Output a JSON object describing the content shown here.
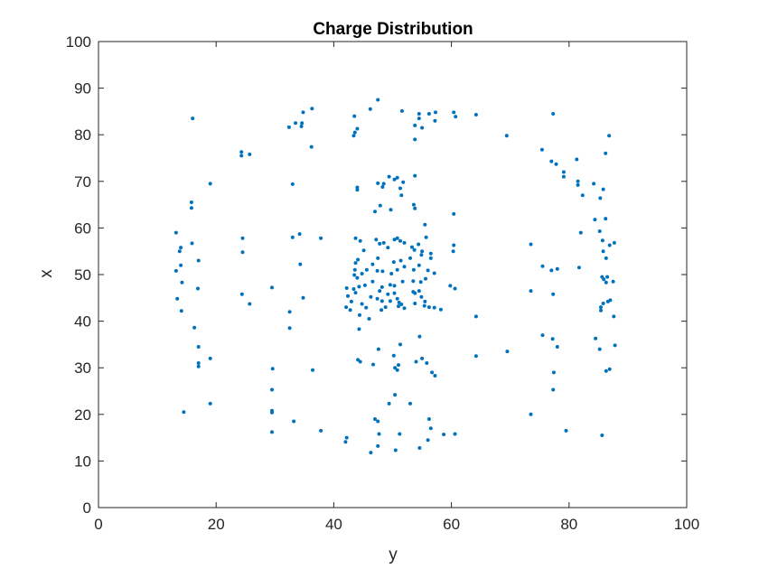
{
  "chart_data": {
    "type": "scatter",
    "title": "Charge Distribution",
    "xlabel": "y",
    "ylabel": "x",
    "xlim": [
      0,
      100
    ],
    "ylim": [
      0,
      100
    ],
    "xticks": [
      "0",
      "20",
      "40",
      "60",
      "80",
      "100"
    ],
    "yticks": [
      "0",
      "10",
      "20",
      "30",
      "40",
      "50",
      "60",
      "70",
      "80",
      "90",
      "100"
    ],
    "grid": false,
    "marker_color": "#0072BD",
    "points": [
      [
        16.0,
        83.5
      ],
      [
        19.0,
        69.5
      ],
      [
        13.2,
        59.0
      ],
      [
        13.8,
        55.0
      ],
      [
        14.0,
        55.8
      ],
      [
        15.8,
        65.5
      ],
      [
        15.8,
        64.3
      ],
      [
        15.9,
        56.7
      ],
      [
        17.0,
        53.0
      ],
      [
        13.2,
        50.8
      ],
      [
        14.0,
        52.0
      ],
      [
        14.2,
        48.3
      ],
      [
        16.9,
        47.0
      ],
      [
        13.4,
        44.8
      ],
      [
        14.1,
        42.2
      ],
      [
        16.3,
        38.6
      ],
      [
        17.0,
        34.5
      ],
      [
        17.0,
        31.0
      ],
      [
        17.0,
        30.3
      ],
      [
        19.0,
        32.0
      ],
      [
        14.5,
        20.5
      ],
      [
        19.0,
        22.3
      ],
      [
        24.3,
        76.3
      ],
      [
        24.3,
        75.5
      ],
      [
        25.7,
        75.8
      ],
      [
        24.5,
        57.8
      ],
      [
        24.5,
        54.8
      ],
      [
        24.4,
        45.8
      ],
      [
        25.7,
        43.7
      ],
      [
        29.5,
        47.2
      ],
      [
        29.6,
        29.8
      ],
      [
        29.5,
        25.3
      ],
      [
        29.5,
        20.8
      ],
      [
        29.5,
        20.4
      ],
      [
        29.5,
        16.2
      ],
      [
        33.2,
        18.5
      ],
      [
        37.8,
        16.5
      ],
      [
        32.4,
        81.6
      ],
      [
        33.5,
        82.5
      ],
      [
        34.8,
        84.8
      ],
      [
        34.6,
        82.5
      ],
      [
        34.5,
        81.8
      ],
      [
        36.3,
        85.6
      ],
      [
        36.2,
        77.4
      ],
      [
        33.0,
        69.4
      ],
      [
        33.0,
        58.0
      ],
      [
        34.2,
        58.7
      ],
      [
        37.8,
        57.8
      ],
      [
        34.3,
        52.2
      ],
      [
        34.8,
        45.0
      ],
      [
        32.5,
        42.0
      ],
      [
        32.5,
        38.5
      ],
      [
        36.4,
        29.5
      ],
      [
        42.2,
        15.0
      ],
      [
        42.0,
        14.1
      ],
      [
        43.5,
        84.0
      ],
      [
        44.0,
        81.3
      ],
      [
        43.6,
        80.5
      ],
      [
        43.4,
        79.8
      ],
      [
        46.2,
        85.5
      ],
      [
        47.5,
        87.5
      ],
      [
        51.6,
        85.1
      ],
      [
        54.5,
        84.5
      ],
      [
        56.2,
        84.5
      ],
      [
        57.3,
        84.8
      ],
      [
        57.2,
        83.0
      ],
      [
        54.5,
        83.5
      ],
      [
        53.8,
        82.0
      ],
      [
        55.0,
        81.5
      ],
      [
        53.8,
        79.0
      ],
      [
        60.4,
        84.8
      ],
      [
        60.7,
        83.9
      ],
      [
        64.2,
        84.3
      ],
      [
        69.4,
        79.8
      ],
      [
        44.0,
        68.7
      ],
      [
        44.0,
        68.2
      ],
      [
        47.5,
        69.6
      ],
      [
        48.5,
        69.5
      ],
      [
        48.3,
        68.8
      ],
      [
        49.4,
        71.0
      ],
      [
        50.3,
        70.4
      ],
      [
        50.8,
        70.8
      ],
      [
        51.8,
        69.8
      ],
      [
        53.8,
        71.2
      ],
      [
        51.3,
        68.5
      ],
      [
        51.5,
        67.0
      ],
      [
        53.6,
        65.0
      ],
      [
        53.8,
        64.2
      ],
      [
        47.0,
        63.5
      ],
      [
        47.9,
        64.8
      ],
      [
        49.7,
        63.9
      ],
      [
        43.7,
        57.8
      ],
      [
        44.5,
        57.2
      ],
      [
        45.1,
        55.2
      ],
      [
        47.2,
        57.5
      ],
      [
        47.8,
        56.6
      ],
      [
        48.5,
        56.8
      ],
      [
        49.2,
        55.8
      ],
      [
        50.3,
        57.5
      ],
      [
        50.8,
        57.8
      ],
      [
        51.3,
        57.2
      ],
      [
        52.0,
        56.8
      ],
      [
        53.3,
        55.9
      ],
      [
        53.7,
        55.3
      ],
      [
        54.4,
        56.5
      ],
      [
        55.5,
        60.7
      ],
      [
        55.7,
        58.0
      ],
      [
        56.5,
        54.5
      ],
      [
        55.0,
        55.0
      ],
      [
        54.9,
        54.2
      ],
      [
        56.5,
        53.5
      ],
      [
        53.0,
        53.5
      ],
      [
        51.4,
        53.0
      ],
      [
        50.2,
        52.7
      ],
      [
        47.5,
        53.5
      ],
      [
        46.6,
        52.2
      ],
      [
        44.1,
        53.2
      ],
      [
        43.7,
        52.5
      ],
      [
        43.6,
        51.0
      ],
      [
        43.5,
        49.9
      ],
      [
        44.0,
        49.3
      ],
      [
        44.8,
        50.2
      ],
      [
        45.6,
        51.0
      ],
      [
        47.4,
        50.8
      ],
      [
        48.3,
        50.7
      ],
      [
        49.8,
        50.2
      ],
      [
        50.8,
        51.0
      ],
      [
        52.0,
        51.7
      ],
      [
        53.6,
        51.0
      ],
      [
        54.5,
        52.0
      ],
      [
        56.0,
        50.9
      ],
      [
        57.1,
        50.3
      ],
      [
        55.6,
        49.1
      ],
      [
        54.8,
        48.4
      ],
      [
        53.5,
        48.6
      ],
      [
        51.7,
        48.5
      ],
      [
        49.6,
        47.8
      ],
      [
        48.2,
        47.3
      ],
      [
        46.6,
        48.5
      ],
      [
        45.3,
        47.7
      ],
      [
        44.3,
        47.4
      ],
      [
        43.4,
        46.9
      ],
      [
        43.7,
        46.1
      ],
      [
        42.2,
        47.1
      ],
      [
        42.4,
        45.4
      ],
      [
        43.0,
        44.2
      ],
      [
        42.1,
        43.0
      ],
      [
        42.8,
        42.4
      ],
      [
        44.8,
        43.7
      ],
      [
        46.3,
        45.2
      ],
      [
        47.4,
        44.8
      ],
      [
        47.8,
        46.5
      ],
      [
        48.2,
        44.3
      ],
      [
        49.2,
        45.8
      ],
      [
        49.6,
        44.3
      ],
      [
        50.3,
        46.0
      ],
      [
        50.8,
        44.8
      ],
      [
        51.1,
        44.0
      ],
      [
        51.0,
        43.2
      ],
      [
        51.5,
        43.6
      ],
      [
        52.0,
        42.8
      ],
      [
        53.5,
        46.3
      ],
      [
        53.8,
        46.0
      ],
      [
        54.5,
        46.5
      ],
      [
        54.9,
        45.2
      ],
      [
        55.5,
        44.2
      ],
      [
        56.2,
        43.0
      ],
      [
        55.4,
        43.3
      ],
      [
        53.8,
        43.8
      ],
      [
        57.1,
        42.9
      ],
      [
        58.2,
        42.5
      ],
      [
        50.3,
        47.6
      ],
      [
        45.5,
        42.9
      ],
      [
        44.4,
        41.3
      ],
      [
        46.0,
        40.5
      ],
      [
        48.1,
        42.4
      ],
      [
        48.8,
        43.0
      ],
      [
        59.8,
        47.6
      ],
      [
        60.6,
        47.0
      ],
      [
        60.3,
        55.0
      ],
      [
        60.4,
        56.3
      ],
      [
        60.4,
        63.0
      ],
      [
        64.2,
        41.0
      ],
      [
        64.2,
        32.5
      ],
      [
        69.5,
        33.5
      ],
      [
        44.3,
        38.3
      ],
      [
        47.6,
        34.0
      ],
      [
        50.2,
        32.6
      ],
      [
        51.3,
        35.0
      ],
      [
        50.4,
        30.0
      ],
      [
        50.8,
        29.5
      ],
      [
        51.0,
        30.6
      ],
      [
        46.7,
        30.7
      ],
      [
        44.1,
        31.7
      ],
      [
        44.5,
        31.3
      ],
      [
        55.0,
        32.0
      ],
      [
        55.8,
        31.0
      ],
      [
        54.0,
        31.3
      ],
      [
        54.6,
        36.7
      ],
      [
        56.7,
        29.0
      ],
      [
        57.2,
        28.3
      ],
      [
        50.4,
        24.2
      ],
      [
        49.4,
        22.3
      ],
      [
        53.0,
        22.3
      ],
      [
        47.0,
        19.0
      ],
      [
        47.5,
        18.5
      ],
      [
        47.7,
        15.8
      ],
      [
        46.3,
        11.8
      ],
      [
        47.5,
        13.2
      ],
      [
        50.5,
        12.3
      ],
      [
        51.2,
        15.8
      ],
      [
        54.6,
        12.8
      ],
      [
        56.5,
        17.0
      ],
      [
        56.0,
        14.5
      ],
      [
        56.2,
        19.0
      ],
      [
        58.7,
        15.7
      ],
      [
        60.6,
        15.8
      ],
      [
        73.5,
        56.5
      ],
      [
        73.5,
        46.5
      ],
      [
        73.5,
        20.0
      ],
      [
        75.4,
        76.8
      ],
      [
        77.0,
        74.3
      ],
      [
        77.8,
        73.7
      ],
      [
        79.1,
        72.0
      ],
      [
        79.1,
        71.0
      ],
      [
        81.3,
        74.7
      ],
      [
        81.5,
        70.0
      ],
      [
        81.5,
        69.2
      ],
      [
        82.3,
        67.0
      ],
      [
        77.3,
        84.5
      ],
      [
        84.2,
        69.5
      ],
      [
        85.3,
        66.4
      ],
      [
        85.8,
        68.3
      ],
      [
        86.2,
        76.0
      ],
      [
        86.8,
        79.8
      ],
      [
        84.4,
        61.8
      ],
      [
        86.2,
        62.0
      ],
      [
        82.0,
        59.0
      ],
      [
        85.2,
        59.3
      ],
      [
        85.7,
        57.3
      ],
      [
        86.9,
        56.3
      ],
      [
        87.7,
        56.8
      ],
      [
        75.5,
        51.8
      ],
      [
        77.0,
        50.9
      ],
      [
        78.0,
        51.2
      ],
      [
        81.7,
        51.5
      ],
      [
        85.8,
        55.0
      ],
      [
        86.3,
        53.5
      ],
      [
        85.6,
        49.5
      ],
      [
        85.9,
        49.0
      ],
      [
        86.5,
        49.5
      ],
      [
        86.3,
        48.3
      ],
      [
        87.5,
        48.5
      ],
      [
        77.3,
        45.8
      ],
      [
        85.4,
        43.0
      ],
      [
        85.4,
        42.3
      ],
      [
        85.8,
        43.8
      ],
      [
        86.6,
        44.2
      ],
      [
        87.0,
        44.5
      ],
      [
        87.6,
        41.0
      ],
      [
        75.5,
        37.0
      ],
      [
        77.2,
        36.2
      ],
      [
        78.0,
        34.5
      ],
      [
        84.5,
        36.3
      ],
      [
        85.2,
        34.0
      ],
      [
        87.8,
        34.8
      ],
      [
        77.4,
        29.0
      ],
      [
        86.3,
        29.3
      ],
      [
        86.9,
        29.7
      ],
      [
        77.3,
        25.3
      ],
      [
        79.5,
        16.5
      ],
      [
        85.6,
        15.5
      ]
    ]
  }
}
